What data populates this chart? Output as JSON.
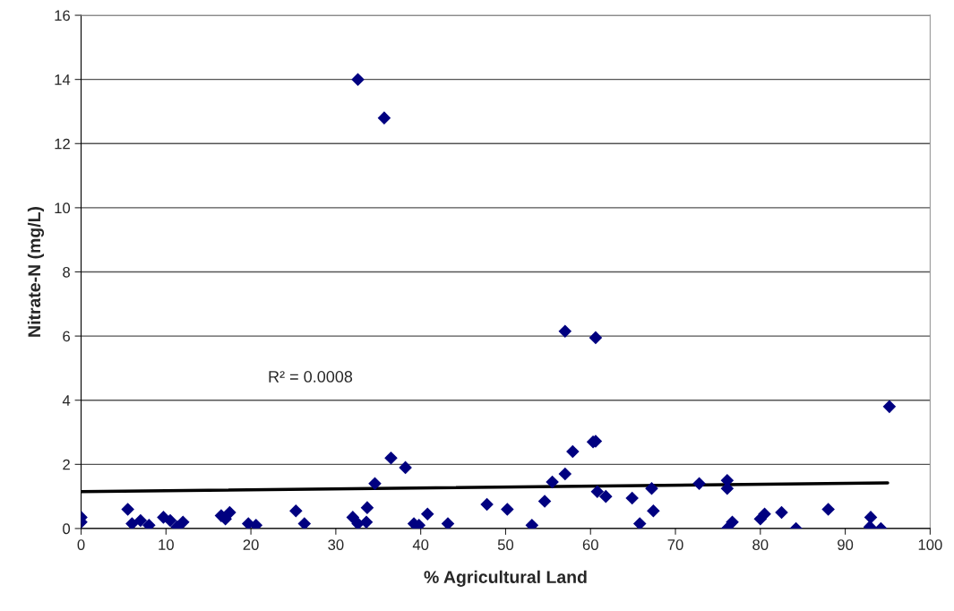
{
  "chart_data": {
    "type": "scatter",
    "xlabel": "% Agricultural Land",
    "ylabel": "Nitrate-N (mg/L)",
    "annotations": [
      "R² = 0.0008"
    ],
    "xlim": [
      0,
      100
    ],
    "ylim": [
      0,
      16
    ],
    "xticks": [
      0,
      10,
      20,
      30,
      40,
      50,
      60,
      70,
      80,
      90,
      100
    ],
    "yticks": [
      0,
      2,
      4,
      6,
      8,
      10,
      12,
      14,
      16
    ],
    "grid": "y",
    "legend": false,
    "series": [
      {
        "marker": "diamond",
        "color": "#000080",
        "x": [
          0,
          0,
          5.5,
          6,
          7,
          8,
          9.7,
          10.5,
          11.3,
          12,
          16.5,
          17,
          17.5,
          19.7,
          20.6,
          25.3,
          26.3,
          32,
          32.6,
          32.6,
          33.6,
          33.7,
          35.7,
          34.6,
          36.5,
          38.2,
          39.2,
          39.8,
          40.8,
          43.2,
          47.8,
          50.2,
          53.1,
          54.6,
          55.5,
          57,
          57,
          57.9,
          60.6,
          60.3,
          60.6,
          60.8,
          61.8,
          64.9,
          65.8,
          67.2,
          67.4,
          72.8,
          76.1,
          76.1,
          76.1,
          76.7,
          80,
          80.5,
          82.5,
          84.2,
          88,
          93,
          92.9,
          94.2,
          95.2
        ],
        "values": [
          0.35,
          0.2,
          0.6,
          0.15,
          0.25,
          0.1,
          0.35,
          0.25,
          0.05,
          0.2,
          0.4,
          0.3,
          0.5,
          0.15,
          0.1,
          0.55,
          0.15,
          0.35,
          0.15,
          14,
          0.2,
          0.65,
          12.8,
          1.4,
          2.2,
          1.9,
          0.15,
          0.1,
          0.45,
          0.15,
          0.75,
          0.6,
          0.1,
          0.85,
          1.45,
          6.15,
          1.7,
          2.4,
          5.95,
          2.7,
          2.72,
          1.15,
          1.0,
          0.95,
          0.15,
          1.25,
          0.55,
          1.4,
          1.5,
          1.25,
          0.0,
          0.2,
          0.3,
          0.45,
          0.5,
          0.0,
          0.6,
          0.35,
          0.05,
          0.0,
          3.8
        ]
      },
      {
        "type": "line",
        "marker": "none",
        "color": "#000000",
        "x": [
          0,
          95
        ],
        "values": [
          1.15,
          1.42
        ]
      }
    ]
  }
}
